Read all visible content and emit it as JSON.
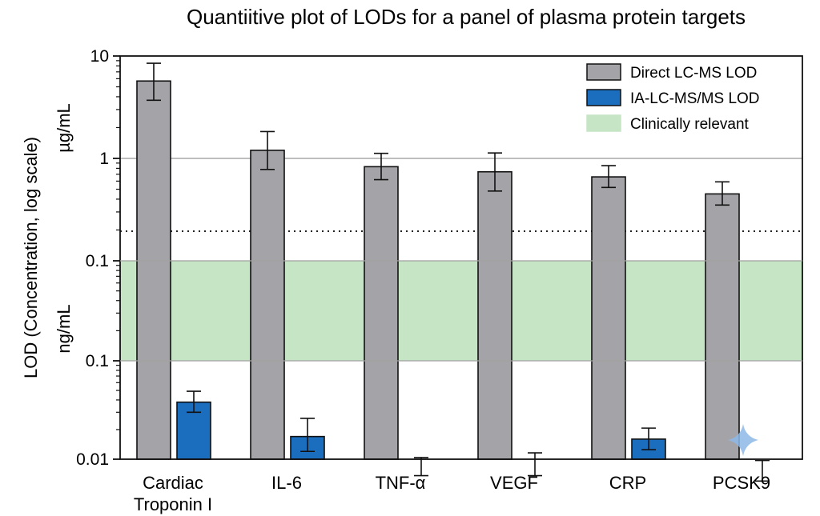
{
  "chart_data": {
    "type": "bar",
    "title": "Quantiitive plot of LODs for a panel of plasma protein targets",
    "ylabel": "LOD (Concentration, log scale)",
    "unit_labels": [
      "µg/mL",
      "ng/mL"
    ],
    "yscale": "log",
    "ylim": [
      0.01,
      10
    ],
    "yticks": [
      "10",
      "1",
      "0.1",
      "0.1",
      "0.01"
    ],
    "categories": [
      "Cardiac Troponin I",
      "IL-6",
      "TNF-α",
      "VEGF",
      "CRP",
      "PCSK9"
    ],
    "category_lines": [
      [
        "Cardiac",
        "Troponin I"
      ],
      [
        "IL-6"
      ],
      [
        "TNF-α"
      ],
      [
        "VEGF"
      ],
      [
        "CRP"
      ],
      [
        "PCSK9"
      ]
    ],
    "series": [
      {
        "name": "Direct LC-MS LOD",
        "color": "#a4a4a8",
        "values": [
          5.7,
          1.2,
          0.83,
          0.74,
          0.66,
          0.45
        ],
        "err_low": [
          3.7,
          0.78,
          0.62,
          0.48,
          0.52,
          0.35
        ],
        "err_high": [
          8.5,
          1.83,
          1.12,
          1.13,
          0.85,
          0.59
        ]
      },
      {
        "name": "IA-LC-MS/MS LOD",
        "color": "#1b6dbd",
        "values": [
          0.038,
          0.017,
          0.0085,
          0.009,
          0.016,
          0.0077
        ],
        "err_low": [
          0.03,
          0.012,
          0.0068,
          0.0068,
          0.0125,
          0.006
        ],
        "err_high": [
          0.049,
          0.026,
          0.0104,
          0.0116,
          0.0207,
          0.0097
        ]
      }
    ],
    "reference_band": {
      "name": "Clinically relevant",
      "color": "#c5e5c5",
      "range": [
        0.01,
        0.1
      ]
    },
    "reference_lines": [
      {
        "style": "dotted",
        "value": 0.2
      },
      {
        "style": "solid",
        "value": 1
      }
    ],
    "legend_position": "top-right",
    "grid": false
  }
}
